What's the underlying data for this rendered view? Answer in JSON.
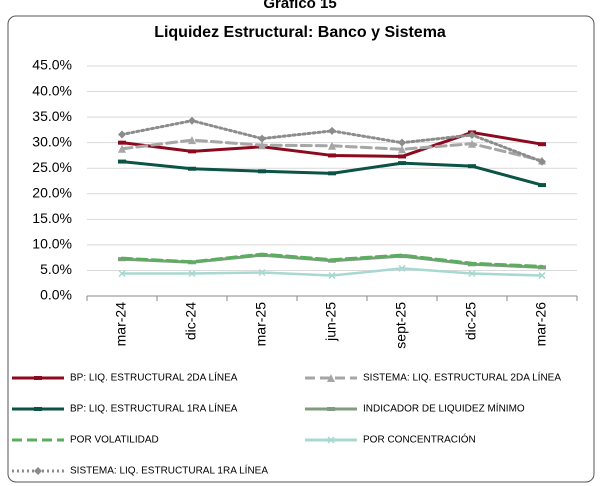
{
  "header": "Gráfico 15",
  "chart_data": {
    "type": "line",
    "title": "Liquidez Estructural: Banco y Sistema",
    "categories": [
      "mar-24",
      "dic-24",
      "mar-25",
      "jun-25",
      "sept-25",
      "dic-25",
      "mar-26"
    ],
    "ylim": [
      0,
      45
    ],
    "yticks": [
      {
        "value": 0,
        "label": "0.0%"
      },
      {
        "value": 5,
        "label": "5.0%"
      },
      {
        "value": 10,
        "label": "10.0%"
      },
      {
        "value": 15,
        "label": "15.0%"
      },
      {
        "value": 20,
        "label": "20.0%"
      },
      {
        "value": 25,
        "label": "25.0%"
      },
      {
        "value": 30,
        "label": "30.0%"
      },
      {
        "value": 35,
        "label": "35.0%"
      },
      {
        "value": 40,
        "label": "40.0%"
      },
      {
        "value": 45,
        "label": "45.0%"
      }
    ],
    "grid": true,
    "legend": "bottom",
    "series": [
      {
        "name": "BP: LIQ. ESTRUCTURAL 2DA LÍNEA",
        "color": "#8b0a1e",
        "style": "solid",
        "marker": "dash",
        "values": [
          30.0,
          28.3,
          29.2,
          27.5,
          27.3,
          32.0,
          29.7
        ]
      },
      {
        "name": "SISTEMA: LIQ. ESTRUCTURAL 2DA LÍNEA",
        "color": "#a6a6a6",
        "style": "dashed",
        "marker": "triangle",
        "values": [
          28.8,
          30.5,
          29.5,
          29.4,
          28.7,
          29.8,
          26.5
        ]
      },
      {
        "name": "BP: LIQ. ESTRUCTURAL 1RA LÍNEA",
        "color": "#0b5345",
        "style": "solid",
        "marker": "dash",
        "values": [
          26.3,
          24.9,
          24.4,
          24.0,
          26.0,
          25.4,
          21.7
        ]
      },
      {
        "name": "INDICADOR DE LIQUIDEZ MÍNIMO",
        "color": "#7f9b80",
        "style": "solid",
        "marker": "dash",
        "values": [
          7.2,
          6.6,
          8.0,
          6.9,
          7.8,
          6.2,
          5.6
        ]
      },
      {
        "name": "POR VOLATILIDAD",
        "color": "#5aae5e",
        "style": "dashed",
        "marker": "none",
        "values": [
          7.4,
          6.7,
          8.2,
          7.1,
          8.0,
          6.4,
          5.8
        ]
      },
      {
        "name": "POR CONCENTRACIÓN",
        "color": "#a8d8d0",
        "style": "solid",
        "marker": "x",
        "values": [
          4.4,
          4.4,
          4.6,
          4.0,
          5.4,
          4.4,
          4.0
        ]
      },
      {
        "name": "SISTEMA: LIQ. ESTRUCTURAL 1RA LÍNEA",
        "color": "#8c8c8c",
        "style": "dotted",
        "marker": "diamond",
        "values": [
          31.6,
          34.3,
          30.8,
          32.3,
          30.0,
          31.5,
          26.3
        ]
      }
    ]
  }
}
